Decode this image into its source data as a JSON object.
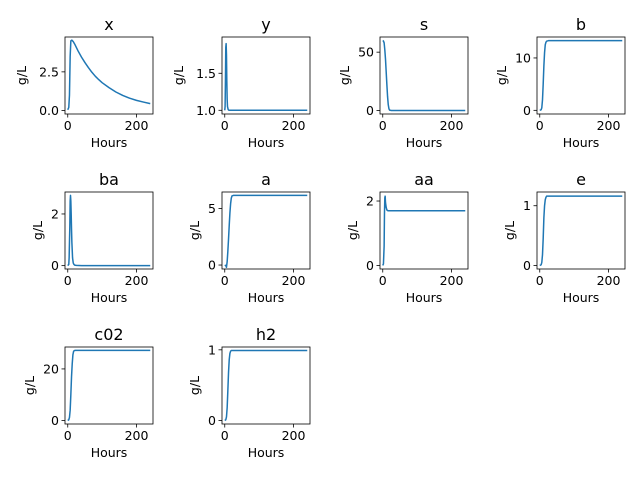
{
  "chart_data": [
    {
      "type": "line",
      "title": "x",
      "xlabel": "Hours",
      "ylabel": "g/L",
      "xlim": [
        -8,
        248
      ],
      "ylim": [
        -0.22,
        4.75
      ],
      "xticks": [
        0,
        200
      ],
      "yticks": [
        0.0,
        2.5
      ],
      "ytick_labels": [
        "0.0",
        "2.5"
      ],
      "color": "#1f77b4",
      "series": [
        {
          "x": [
            0,
            3,
            5,
            7,
            9,
            12,
            16,
            20,
            30,
            40,
            50,
            60,
            70,
            80,
            90,
            100,
            120,
            140,
            160,
            180,
            200,
            220,
            240
          ],
          "y": [
            0.05,
            0.2,
            1.0,
            3.5,
            4.5,
            4.55,
            4.45,
            4.3,
            3.85,
            3.45,
            3.1,
            2.78,
            2.48,
            2.22,
            2.0,
            1.8,
            1.48,
            1.2,
            0.98,
            0.8,
            0.66,
            0.55,
            0.45
          ]
        }
      ]
    },
    {
      "type": "line",
      "title": "y",
      "xlabel": "Hours",
      "ylabel": "g/L",
      "xlim": [
        -8,
        248
      ],
      "ylim": [
        0.95,
        1.99
      ],
      "xticks": [
        0,
        200
      ],
      "yticks": [
        1.0,
        1.5
      ],
      "ytick_labels": [
        "1.0",
        "1.5"
      ],
      "color": "#1f77b4",
      "series": [
        {
          "x": [
            0,
            1,
            2,
            3,
            4,
            5,
            6,
            7,
            8,
            10,
            12,
            20,
            40,
            100,
            240
          ],
          "y": [
            1.0,
            1.05,
            1.4,
            1.85,
            1.9,
            1.75,
            1.4,
            1.15,
            1.05,
            1.01,
            1.0,
            1.0,
            1.0,
            1.0,
            1.0
          ]
        }
      ]
    },
    {
      "type": "line",
      "title": "s",
      "xlabel": "Hours",
      "ylabel": "g/L",
      "xlim": [
        -8,
        248
      ],
      "ylim": [
        -3,
        63
      ],
      "xticks": [
        0,
        200
      ],
      "yticks": [
        0,
        50
      ],
      "ytick_labels": [
        "0",
        "50"
      ],
      "color": "#1f77b4",
      "series": [
        {
          "x": [
            0,
            2,
            4,
            6,
            8,
            10,
            12,
            14,
            16,
            18,
            20,
            25,
            40,
            240
          ],
          "y": [
            60,
            59.5,
            58,
            52,
            44,
            33,
            22,
            12,
            5,
            1.5,
            0.3,
            0,
            0,
            0
          ]
        }
      ]
    },
    {
      "type": "line",
      "title": "b",
      "xlabel": "Hours",
      "ylabel": "g/L",
      "xlim": [
        -8,
        248
      ],
      "ylim": [
        -0.7,
        14.0
      ],
      "xticks": [
        0,
        200
      ],
      "yticks": [
        0,
        10
      ],
      "ytick_labels": [
        "0",
        "10"
      ],
      "color": "#1f77b4",
      "series": [
        {
          "x": [
            0,
            4,
            6,
            8,
            10,
            12,
            14,
            16,
            18,
            20,
            25,
            40,
            100,
            240
          ],
          "y": [
            0,
            0.1,
            0.5,
            2,
            5,
            8.5,
            11,
            12.5,
            13,
            13.2,
            13.3,
            13.3,
            13.3,
            13.3
          ]
        }
      ]
    },
    {
      "type": "line",
      "title": "ba",
      "xlabel": "Hours",
      "ylabel": "g/L",
      "xlim": [
        -8,
        248
      ],
      "ylim": [
        -0.13,
        2.85
      ],
      "xticks": [
        0,
        200
      ],
      "yticks": [
        0,
        2
      ],
      "ytick_labels": [
        "0",
        "2"
      ],
      "color": "#1f77b4",
      "series": [
        {
          "x": [
            0,
            3,
            4,
            6,
            7,
            8,
            9,
            10,
            11,
            12,
            14,
            16,
            18,
            20,
            25,
            40,
            240
          ],
          "y": [
            0,
            0.05,
            0.3,
            1.5,
            2.5,
            2.72,
            2.5,
            2.0,
            1.4,
            0.9,
            0.3,
            0.1,
            0.05,
            0.02,
            0.01,
            0.0,
            0.0
          ]
        }
      ]
    },
    {
      "type": "line",
      "title": "a",
      "xlabel": "Hours",
      "ylabel": "g/L",
      "xlim": [
        -8,
        248
      ],
      "ylim": [
        -0.35,
        6.45
      ],
      "xticks": [
        0,
        200
      ],
      "yticks": [
        0,
        5
      ],
      "ytick_labels": [
        "0",
        "5"
      ],
      "color": "#1f77b4",
      "series": [
        {
          "x": [
            0,
            3,
            5,
            7,
            9,
            11,
            13,
            15,
            17,
            19,
            21,
            25,
            40,
            240
          ],
          "y": [
            0,
            -0.05,
            -0.2,
            0.3,
            1.2,
            2.3,
            3.5,
            4.6,
            5.4,
            5.9,
            6.1,
            6.15,
            6.15,
            6.15
          ]
        }
      ]
    },
    {
      "type": "line",
      "title": "aa",
      "xlabel": "Hours",
      "ylabel": "g/L",
      "xlim": [
        -8,
        248
      ],
      "ylim": [
        -0.11,
        2.28
      ],
      "xticks": [
        0,
        200
      ],
      "yticks": [
        0,
        2
      ],
      "ytick_labels": [
        "0",
        "2"
      ],
      "color": "#1f77b4",
      "series": [
        {
          "x": [
            0,
            2,
            4,
            5,
            6,
            7,
            8,
            10,
            12,
            15,
            20,
            40,
            240
          ],
          "y": [
            0,
            0.05,
            0.6,
            1.6,
            2.1,
            2.15,
            1.95,
            1.8,
            1.72,
            1.7,
            1.7,
            1.7,
            1.7
          ]
        }
      ]
    },
    {
      "type": "line",
      "title": "e",
      "xlabel": "Hours",
      "ylabel": "g/L",
      "xlim": [
        -8,
        248
      ],
      "ylim": [
        -0.06,
        1.23
      ],
      "xticks": [
        0,
        200
      ],
      "yticks": [
        0,
        1
      ],
      "ytick_labels": [
        "0",
        "1"
      ],
      "color": "#1f77b4",
      "series": [
        {
          "x": [
            0,
            4,
            6,
            8,
            10,
            12,
            14,
            16,
            18,
            20,
            25,
            40,
            240
          ],
          "y": [
            0,
            0.01,
            0.05,
            0.18,
            0.45,
            0.8,
            1.0,
            1.1,
            1.14,
            1.16,
            1.16,
            1.16,
            1.16
          ]
        }
      ]
    },
    {
      "type": "line",
      "title": "c02",
      "xlabel": "Hours",
      "ylabel": "g/L",
      "xlim": [
        -8,
        248
      ],
      "ylim": [
        -1.35,
        28.5
      ],
      "xticks": [
        0,
        200
      ],
      "yticks": [
        0,
        20
      ],
      "ytick_labels": [
        "0",
        "20"
      ],
      "color": "#1f77b4",
      "series": [
        {
          "x": [
            0,
            3,
            5,
            7,
            9,
            11,
            13,
            15,
            17,
            19,
            22,
            30,
            240
          ],
          "y": [
            0,
            0.3,
            1.2,
            4,
            10,
            17,
            22,
            25.5,
            26.8,
            27.1,
            27.2,
            27.2,
            27.2
          ]
        }
      ]
    },
    {
      "type": "line",
      "title": "h2",
      "xlabel": "Hours",
      "ylabel": "g/L",
      "xlim": [
        -8,
        248
      ],
      "ylim": [
        -0.05,
        1.04
      ],
      "xticks": [
        0,
        200
      ],
      "yticks": [
        0,
        1
      ],
      "ytick_labels": [
        "0",
        "1"
      ],
      "color": "#1f77b4",
      "series": [
        {
          "x": [
            0,
            3,
            5,
            7,
            9,
            11,
            13,
            15,
            17,
            19,
            22,
            30,
            240
          ],
          "y": [
            0,
            0.01,
            0.05,
            0.18,
            0.42,
            0.68,
            0.86,
            0.95,
            0.98,
            0.99,
            0.99,
            0.99,
            0.99
          ]
        }
      ]
    }
  ]
}
